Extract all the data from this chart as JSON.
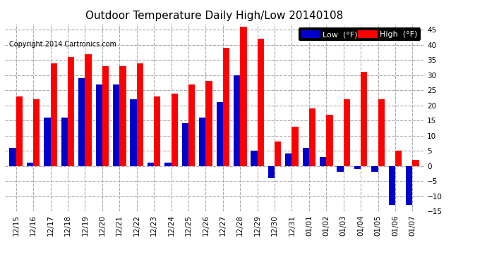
{
  "title": "Outdoor Temperature Daily High/Low 20140108",
  "copyright": "Copyright 2014 Cartronics.com",
  "legend_low": "Low  (°F)",
  "legend_high": "High  (°F)",
  "dates": [
    "12/15",
    "12/16",
    "12/17",
    "12/18",
    "12/19",
    "12/20",
    "12/21",
    "12/22",
    "12/23",
    "12/24",
    "12/25",
    "12/26",
    "12/27",
    "12/28",
    "12/29",
    "12/30",
    "12/31",
    "01/01",
    "01/02",
    "01/03",
    "01/04",
    "01/05",
    "01/06",
    "01/07"
  ],
  "highs": [
    23,
    22,
    34,
    36,
    37,
    33,
    33,
    34,
    23,
    24,
    27,
    28,
    39,
    46,
    42,
    8,
    13,
    19,
    17,
    22,
    31,
    22,
    5,
    2
  ],
  "lows": [
    6,
    1,
    16,
    16,
    29,
    27,
    27,
    22,
    1,
    1,
    14,
    16,
    21,
    30,
    5,
    -4,
    4,
    6,
    3,
    -2,
    -1,
    -2,
    -13,
    -13
  ],
  "ylim": [
    -15,
    47
  ],
  "yticks": [
    -15.0,
    -10.0,
    -5.0,
    0.0,
    5.0,
    10.0,
    15.0,
    20.0,
    25.0,
    30.0,
    35.0,
    40.0,
    45.0
  ],
  "bar_width": 0.38,
  "high_color": "#ff0000",
  "low_color": "#0000cc",
  "bg_color": "#ffffff",
  "grid_color": "#aaaaaa",
  "title_fontsize": 11,
  "tick_fontsize": 7.5,
  "copyright_fontsize": 7
}
